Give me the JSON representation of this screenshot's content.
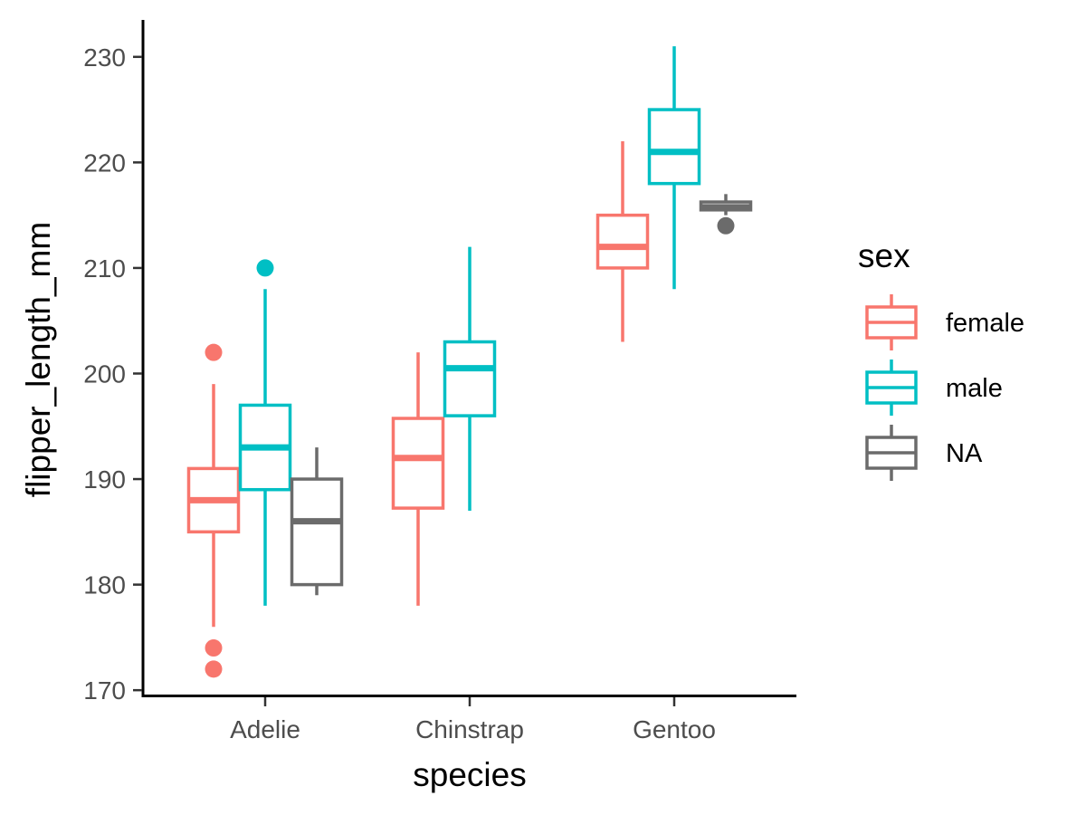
{
  "chart_data": {
    "type": "boxplot",
    "title": "",
    "xlabel": "species",
    "ylabel": "flipper_length_mm",
    "categories": [
      "Adelie",
      "Chinstrap",
      "Gentoo"
    ],
    "ylim": [
      169.5,
      233.5
    ],
    "yticks": [
      170,
      180,
      190,
      200,
      210,
      220,
      230
    ],
    "grid": false,
    "legend": {
      "title": "sex",
      "position": "right",
      "entries": [
        "female",
        "male",
        "NA"
      ]
    },
    "colors": {
      "female": "#F8766D",
      "male": "#00BFC4",
      "NA": "#6B6B6B"
    },
    "series": [
      {
        "name": "female",
        "boxes": [
          {
            "category": "Adelie",
            "whisker_low": 176,
            "q1": 185,
            "median": 188,
            "q3": 191,
            "whisker_high": 199,
            "outliers": [
              172,
              174,
              202
            ]
          },
          {
            "category": "Chinstrap",
            "whisker_low": 178,
            "q1": 187.25,
            "median": 192,
            "q3": 195.75,
            "whisker_high": 202,
            "outliers": []
          },
          {
            "category": "Gentoo",
            "whisker_low": 203,
            "q1": 210,
            "median": 212,
            "q3": 215,
            "whisker_high": 222,
            "outliers": []
          }
        ]
      },
      {
        "name": "male",
        "boxes": [
          {
            "category": "Adelie",
            "whisker_low": 178,
            "q1": 189,
            "median": 193,
            "q3": 197,
            "whisker_high": 208,
            "outliers": [
              210
            ]
          },
          {
            "category": "Chinstrap",
            "whisker_low": 187,
            "q1": 196,
            "median": 200.5,
            "q3": 203,
            "whisker_high": 212,
            "outliers": []
          },
          {
            "category": "Gentoo",
            "whisker_low": 208,
            "q1": 218,
            "median": 221,
            "q3": 225,
            "whisker_high": 231,
            "outliers": []
          }
        ]
      },
      {
        "name": "NA",
        "boxes": [
          {
            "category": "Adelie",
            "whisker_low": 179,
            "q1": 180,
            "median": 186,
            "q3": 190,
            "whisker_high": 193,
            "outliers": []
          },
          {
            "category": "Gentoo",
            "whisker_low": 215,
            "q1": 215.5,
            "median": 215.75,
            "q3": 216.25,
            "whisker_high": 217,
            "outliers": [
              214
            ]
          }
        ]
      }
    ]
  }
}
